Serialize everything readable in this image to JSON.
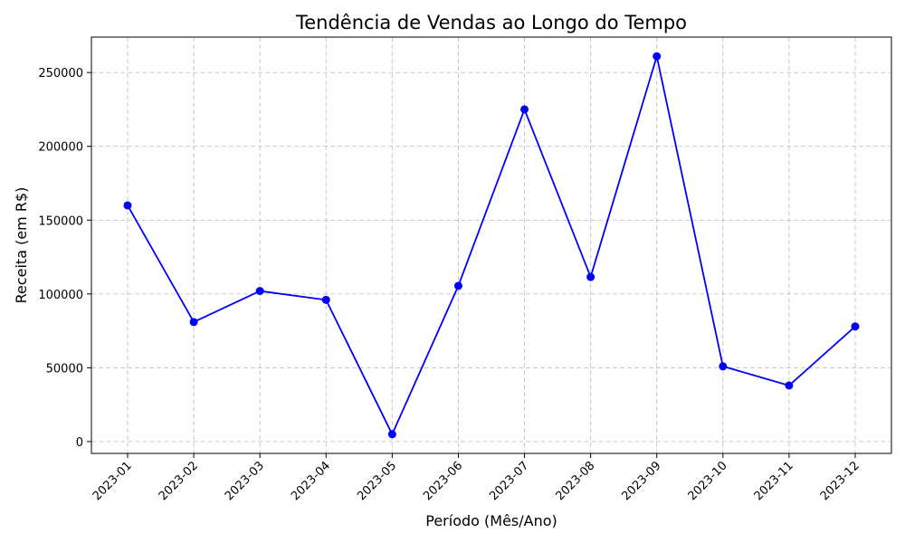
{
  "chart_data": {
    "type": "line",
    "title": "Tendência de Vendas ao Longo do Tempo",
    "xlabel": "Período (Mês/Ano)",
    "ylabel": "Receita (em R$)",
    "categories": [
      "2023-01",
      "2023-02",
      "2023-03",
      "2023-04",
      "2023-05",
      "2023-06",
      "2023-07",
      "2023-08",
      "2023-09",
      "2023-10",
      "2023-11",
      "2023-12"
    ],
    "series": [
      {
        "values": [
          160000,
          81000,
          102000,
          96000,
          5000,
          105500,
          225000,
          111500,
          261000,
          51000,
          38000,
          78000
        ],
        "color": "#0000ff",
        "marker": "circle"
      }
    ],
    "ylim": [
      -8000,
      274000
    ],
    "yticks": [
      0,
      50000,
      100000,
      150000,
      200000,
      250000
    ],
    "grid": true,
    "legend": "none",
    "x_tick_rotation": 45
  }
}
